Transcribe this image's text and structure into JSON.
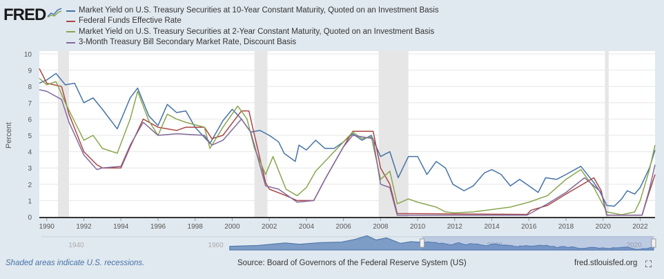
{
  "logo": "FRED",
  "footer": {
    "recession_note": "Shaded areas indicate U.S. recessions.",
    "source": "Source: Board of Governors of the Federal Reserve System (US)",
    "site": "fred.stlouisfed.org"
  },
  "colors": {
    "blue": "#4572a7",
    "red": "#aa4643",
    "green": "#89a54e",
    "purple": "#80699b",
    "recession": "#e6e6e6",
    "navigator": "#4572a7"
  },
  "icons": {
    "logo": "line-chart-icon",
    "fullscreen": "fullscreen-icon"
  },
  "chart_data": {
    "type": "line",
    "ylabel": "Percent",
    "ylim": [
      0,
      10
    ],
    "yticks": [
      "0",
      "1",
      "2",
      "3",
      "4",
      "5",
      "6",
      "7",
      "8",
      "9",
      "10"
    ],
    "xlim": [
      1989.6,
      2022.8
    ],
    "xticks": [
      "1990",
      "1992",
      "1994",
      "1996",
      "1998",
      "2000",
      "2002",
      "2004",
      "2006",
      "2008",
      "2010",
      "2012",
      "2014",
      "2016",
      "2018",
      "2020",
      "2022"
    ],
    "recessions": [
      [
        1990.6,
        1991.2
      ],
      [
        2001.2,
        2001.9
      ],
      [
        2007.9,
        2009.5
      ],
      [
        2020.1,
        2020.3
      ]
    ],
    "navigator": {
      "ticks": [
        "1940",
        "1960",
        "1980",
        "2000",
        "2020"
      ],
      "range": [
        1935,
        2023
      ],
      "data_start": 1962,
      "selection": [
        1989.6,
        2022.8
      ]
    },
    "series": [
      {
        "name": "Market Yield on U.S. Treasury Securities at 10-Year Constant Maturity, Quoted on an Investment Basis",
        "color": "#4572a7",
        "points": [
          [
            1989.6,
            8.2
          ],
          [
            1990,
            8.4
          ],
          [
            1990.5,
            8.8
          ],
          [
            1991,
            8.1
          ],
          [
            1991.5,
            8.2
          ],
          [
            1992,
            7.0
          ],
          [
            1992.5,
            7.3
          ],
          [
            1993,
            6.6
          ],
          [
            1993.8,
            5.4
          ],
          [
            1994.5,
            7.3
          ],
          [
            1994.9,
            7.9
          ],
          [
            1995.5,
            6.2
          ],
          [
            1996,
            5.6
          ],
          [
            1996.5,
            6.9
          ],
          [
            1997,
            6.4
          ],
          [
            1997.5,
            6.5
          ],
          [
            1998,
            5.5
          ],
          [
            1998.8,
            4.5
          ],
          [
            1999.5,
            5.9
          ],
          [
            2000,
            6.6
          ],
          [
            2000.5,
            6.0
          ],
          [
            2001,
            5.2
          ],
          [
            2001.5,
            5.3
          ],
          [
            2002,
            5.0
          ],
          [
            2002.5,
            4.6
          ],
          [
            2002.8,
            3.9
          ],
          [
            2003.4,
            3.4
          ],
          [
            2003.6,
            4.4
          ],
          [
            2004,
            4.1
          ],
          [
            2004.5,
            4.7
          ],
          [
            2005,
            4.2
          ],
          [
            2005.5,
            4.2
          ],
          [
            2006,
            4.6
          ],
          [
            2006.5,
            5.1
          ],
          [
            2007,
            4.7
          ],
          [
            2007.5,
            5.0
          ],
          [
            2008,
            3.7
          ],
          [
            2008.5,
            4.0
          ],
          [
            2008.95,
            2.4
          ],
          [
            2009.5,
            3.7
          ],
          [
            2010,
            3.7
          ],
          [
            2010.5,
            2.6
          ],
          [
            2011,
            3.4
          ],
          [
            2011.5,
            3.0
          ],
          [
            2011.9,
            2.0
          ],
          [
            2012.5,
            1.6
          ],
          [
            2013,
            1.9
          ],
          [
            2013.6,
            2.7
          ],
          [
            2014,
            2.9
          ],
          [
            2014.5,
            2.6
          ],
          [
            2015,
            1.9
          ],
          [
            2015.5,
            2.3
          ],
          [
            2016,
            1.9
          ],
          [
            2016.5,
            1.5
          ],
          [
            2016.9,
            2.4
          ],
          [
            2017.5,
            2.3
          ],
          [
            2018,
            2.6
          ],
          [
            2018.8,
            3.1
          ],
          [
            2019.5,
            2.1
          ],
          [
            2019.8,
            1.6
          ],
          [
            2020.2,
            0.7
          ],
          [
            2020.6,
            0.65
          ],
          [
            2021,
            1.1
          ],
          [
            2021.3,
            1.6
          ],
          [
            2021.7,
            1.4
          ],
          [
            2022,
            1.8
          ],
          [
            2022.5,
            3.0
          ],
          [
            2022.8,
            4.1
          ]
        ]
      },
      {
        "name": "Federal Funds Effective Rate",
        "color": "#aa4643",
        "points": [
          [
            1989.6,
            9.1
          ],
          [
            1990,
            8.2
          ],
          [
            1990.8,
            8.0
          ],
          [
            1991.2,
            6.3
          ],
          [
            1992,
            4.0
          ],
          [
            1992.7,
            3.2
          ],
          [
            1993,
            3.0
          ],
          [
            1994,
            3.0
          ],
          [
            1994.5,
            4.3
          ],
          [
            1995.2,
            6.0
          ],
          [
            1996,
            5.5
          ],
          [
            1997,
            5.3
          ],
          [
            1997.5,
            5.5
          ],
          [
            1998.5,
            5.5
          ],
          [
            1998.9,
            4.8
          ],
          [
            1999.5,
            5.0
          ],
          [
            2000.5,
            6.5
          ],
          [
            2000.9,
            6.5
          ],
          [
            2001.1,
            5.5
          ],
          [
            2001.8,
            2.1
          ],
          [
            2002,
            1.7
          ],
          [
            2002.9,
            1.3
          ],
          [
            2003.5,
            1.0
          ],
          [
            2004.4,
            1.0
          ],
          [
            2005,
            2.3
          ],
          [
            2006,
            4.3
          ],
          [
            2006.5,
            5.25
          ],
          [
            2007.6,
            5.25
          ],
          [
            2008,
            3.0
          ],
          [
            2008.5,
            2.0
          ],
          [
            2008.9,
            0.2
          ],
          [
            2015.9,
            0.15
          ],
          [
            2016.1,
            0.4
          ],
          [
            2017,
            0.7
          ],
          [
            2018,
            1.4
          ],
          [
            2019.5,
            2.4
          ],
          [
            2019.9,
            1.6
          ],
          [
            2020.2,
            0.1
          ],
          [
            2022.1,
            0.1
          ],
          [
            2022.4,
            1.2
          ],
          [
            2022.8,
            2.6
          ]
        ]
      },
      {
        "name": "Market Yield on U.S. Treasury Securities at 2-Year Constant Maturity, Quoted on an Investment Basis",
        "color": "#89a54e",
        "points": [
          [
            1989.6,
            8.5
          ],
          [
            1990,
            8.1
          ],
          [
            1990.5,
            8.3
          ],
          [
            1991,
            7.0
          ],
          [
            1992,
            4.7
          ],
          [
            1992.5,
            5.0
          ],
          [
            1993,
            4.2
          ],
          [
            1993.8,
            3.9
          ],
          [
            1994.5,
            6.0
          ],
          [
            1994.9,
            7.7
          ],
          [
            1995.5,
            5.9
          ],
          [
            1996,
            5.0
          ],
          [
            1996.5,
            6.3
          ],
          [
            1997,
            6.0
          ],
          [
            1997.5,
            5.8
          ],
          [
            1998.5,
            5.5
          ],
          [
            1998.8,
            4.2
          ],
          [
            1999.5,
            5.5
          ],
          [
            2000.3,
            6.8
          ],
          [
            2000.8,
            6.0
          ],
          [
            2001.2,
            4.2
          ],
          [
            2001.8,
            2.6
          ],
          [
            2002.2,
            3.7
          ],
          [
            2002.9,
            1.7
          ],
          [
            2003.5,
            1.3
          ],
          [
            2004,
            1.8
          ],
          [
            2004.5,
            2.8
          ],
          [
            2005,
            3.4
          ],
          [
            2006,
            4.6
          ],
          [
            2006.5,
            5.2
          ],
          [
            2007,
            4.8
          ],
          [
            2007.5,
            4.9
          ],
          [
            2008,
            2.3
          ],
          [
            2008.5,
            2.8
          ],
          [
            2008.9,
            0.8
          ],
          [
            2009.5,
            1.1
          ],
          [
            2010,
            0.9
          ],
          [
            2011,
            0.6
          ],
          [
            2011.5,
            0.3
          ],
          [
            2012,
            0.25
          ],
          [
            2013,
            0.3
          ],
          [
            2014,
            0.45
          ],
          [
            2015,
            0.6
          ],
          [
            2016,
            0.9
          ],
          [
            2017,
            1.3
          ],
          [
            2018,
            2.3
          ],
          [
            2018.8,
            2.9
          ],
          [
            2019.5,
            1.8
          ],
          [
            2020.2,
            0.3
          ],
          [
            2021,
            0.13
          ],
          [
            2021.7,
            0.3
          ],
          [
            2022,
            1.0
          ],
          [
            2022.5,
            2.9
          ],
          [
            2022.8,
            4.4
          ]
        ]
      },
      {
        "name": "3-Month Treasury Bill Secondary Market Rate, Discount Basis",
        "color": "#80699b",
        "points": [
          [
            1989.6,
            7.8
          ],
          [
            1990,
            7.7
          ],
          [
            1990.8,
            7.2
          ],
          [
            1991.2,
            5.8
          ],
          [
            1992,
            3.8
          ],
          [
            1992.7,
            2.9
          ],
          [
            1993,
            3.0
          ],
          [
            1994,
            3.1
          ],
          [
            1994.5,
            4.4
          ],
          [
            1995.2,
            5.8
          ],
          [
            1996,
            5.0
          ],
          [
            1997,
            5.1
          ],
          [
            1998.5,
            5.0
          ],
          [
            1998.9,
            4.4
          ],
          [
            1999.5,
            4.7
          ],
          [
            2000.5,
            6.0
          ],
          [
            2001,
            5.2
          ],
          [
            2001.8,
            1.9
          ],
          [
            2002.5,
            1.7
          ],
          [
            2003.5,
            0.9
          ],
          [
            2004.4,
            1.0
          ],
          [
            2005,
            2.3
          ],
          [
            2006,
            4.3
          ],
          [
            2006.5,
            5.0
          ],
          [
            2007.6,
            4.8
          ],
          [
            2008,
            2.0
          ],
          [
            2008.5,
            1.8
          ],
          [
            2008.9,
            0.1
          ],
          [
            2015.9,
            0.1
          ],
          [
            2017,
            0.8
          ],
          [
            2018,
            1.5
          ],
          [
            2019,
            2.4
          ],
          [
            2019.9,
            1.5
          ],
          [
            2020.2,
            0.1
          ],
          [
            2022.1,
            0.1
          ],
          [
            2022.5,
            1.7
          ],
          [
            2022.8,
            3.2
          ]
        ]
      }
    ]
  }
}
